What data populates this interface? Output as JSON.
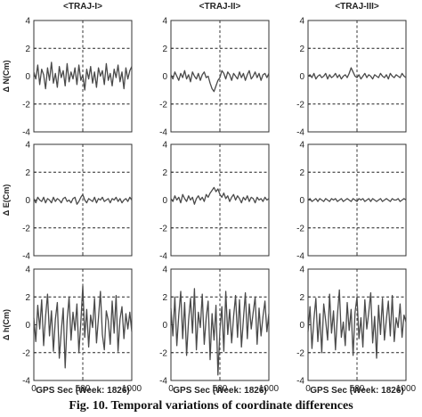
{
  "figure": {
    "caption": "Fig. 10. Temporal variations of coordinate differences"
  },
  "colors": {
    "trace": "#4a4a4a",
    "grid": "#222222",
    "frame": "#333333",
    "text": "#222222"
  },
  "chart_data": {
    "type": "line",
    "rows": [
      "north",
      "east",
      "height"
    ],
    "columns": [
      "traj1",
      "traj2",
      "traj3"
    ],
    "column_titles": [
      "<TRAJ-I>",
      "<TRAJ-II>",
      "<TRAJ-III>"
    ],
    "row_ylabels": [
      "Δ N(Cm)",
      "Δ E(Cm)",
      "Δ h(Cm)"
    ],
    "xlabel": "GPS Sec (Week: 1826)",
    "xlim": [
      0,
      1000
    ],
    "ylim": [
      -4,
      4
    ],
    "x_ticks": [
      0,
      500,
      1000
    ],
    "y_ticks": [
      4,
      2,
      0,
      -2,
      -4
    ],
    "x_tick_labels": [
      "0",
      "500",
      "1000"
    ],
    "y_tick_labels": [
      "4",
      "2",
      "0",
      "-2",
      "-4"
    ],
    "grid": "dashed at x=500 and y=±2",
    "panels": [
      {
        "row": "north",
        "column": "traj1",
        "values": [
          0.3,
          -0.2,
          0.8,
          -0.6,
          0.5,
          0.1,
          -0.9,
          0.6,
          -0.3,
          1.0,
          -0.5,
          0.2,
          -0.8,
          0.7,
          -0.1,
          0.4,
          -0.7,
          0.9,
          -0.4,
          0.3,
          -0.2,
          0.6,
          -0.6,
          0.8,
          -0.3,
          0.1,
          -1.0,
          0.5,
          -0.2,
          0.7,
          -0.5,
          0.3,
          -0.8,
          0.6,
          0.0,
          0.4,
          -0.6,
          0.9,
          -0.3,
          0.2,
          -0.7,
          0.5,
          -0.1,
          0.8,
          -0.4,
          0.3,
          -0.9,
          0.6,
          -0.2,
          0.4,
          0.7
        ]
      },
      {
        "row": "north",
        "column": "traj2",
        "values": [
          0.1,
          -0.2,
          0.3,
          0.0,
          -0.3,
          0.2,
          -0.1,
          0.4,
          -0.2,
          0.1,
          -0.4,
          0.3,
          0.0,
          -0.2,
          0.2,
          -0.3,
          0.1,
          0.3,
          -0.1,
          0.0,
          -0.5,
          -0.9,
          -1.1,
          -0.7,
          -0.3,
          -0.1,
          0.4,
          0.2,
          -0.2,
          0.3,
          0.1,
          -0.3,
          0.2,
          0.0,
          -0.2,
          0.3,
          -0.1,
          0.2,
          -0.3,
          0.1,
          0.4,
          -0.2,
          0.0,
          0.3,
          -0.1,
          0.2,
          -0.3,
          0.1,
          0.2,
          -0.1,
          0.2
        ]
      },
      {
        "row": "north",
        "column": "traj3",
        "values": [
          0.0,
          0.1,
          -0.1,
          0.2,
          -0.2,
          0.0,
          0.1,
          -0.1,
          0.0,
          0.2,
          -0.2,
          0.1,
          -0.1,
          0.0,
          0.2,
          -0.1,
          0.1,
          -0.2,
          0.0,
          0.1,
          -0.1,
          0.2,
          0.6,
          0.3,
          0.0,
          -0.1,
          0.1,
          -0.2,
          0.0,
          0.2,
          -0.1,
          0.1,
          0.0,
          -0.2,
          0.1,
          0.0,
          -0.1,
          0.2,
          0.0,
          -0.1,
          0.1,
          -0.2,
          0.2,
          0.0,
          -0.1,
          0.1,
          0.0,
          -0.1,
          0.2,
          0.0,
          -0.1
        ]
      },
      {
        "row": "east",
        "column": "traj1",
        "values": [
          0.1,
          -0.2,
          0.2,
          0.0,
          -0.1,
          0.2,
          -0.2,
          0.1,
          0.0,
          -0.2,
          0.2,
          -0.1,
          0.1,
          0.0,
          -0.2,
          0.1,
          0.2,
          -0.1,
          0.0,
          -0.2,
          0.1,
          0.2,
          -0.3,
          -0.1,
          0.2,
          0.4,
          0.0,
          -0.2,
          0.1,
          0.0,
          -0.1,
          0.2,
          -0.2,
          0.1,
          0.0,
          0.2,
          -0.1,
          0.0,
          0.1,
          -0.2,
          0.1,
          0.0,
          0.2,
          -0.1,
          0.1,
          -0.2,
          0.0,
          0.1,
          -0.1,
          0.2,
          0.0
        ]
      },
      {
        "row": "east",
        "column": "traj2",
        "values": [
          0.1,
          -0.1,
          0.3,
          0.0,
          0.2,
          -0.2,
          0.4,
          0.1,
          -0.1,
          0.3,
          0.0,
          0.2,
          -0.3,
          0.1,
          0.3,
          0.0,
          0.2,
          -0.1,
          0.4,
          0.2,
          0.5,
          0.7,
          0.9,
          0.6,
          0.8,
          0.4,
          0.2,
          0.5,
          0.1,
          0.3,
          -0.1,
          0.2,
          0.4,
          0.0,
          0.3,
          0.1,
          -0.2,
          0.2,
          0.0,
          0.3,
          -0.1,
          0.2,
          0.1,
          -0.2,
          0.2,
          0.0,
          0.1,
          -0.1,
          0.2,
          0.0,
          0.1
        ]
      },
      {
        "row": "east",
        "column": "traj3",
        "values": [
          0.0,
          0.1,
          -0.1,
          0.0,
          0.1,
          -0.1,
          0.1,
          0.0,
          -0.1,
          0.1,
          0.0,
          -0.1,
          0.1,
          0.0,
          0.1,
          -0.1,
          0.0,
          0.1,
          -0.1,
          0.0,
          0.1,
          0.0,
          -0.1,
          0.1,
          0.0,
          -0.1,
          0.1,
          0.0,
          0.1,
          -0.1,
          0.0,
          0.1,
          -0.1,
          0.1,
          0.0,
          -0.1,
          0.0,
          0.1,
          -0.1,
          0.0,
          0.1,
          0.0,
          -0.1,
          0.1,
          0.0,
          0.0,
          0.1,
          -0.1,
          0.0,
          0.1,
          0.0
        ]
      },
      {
        "row": "height",
        "column": "traj1",
        "values": [
          0.5,
          -1.2,
          1.4,
          -0.3,
          1.8,
          -1.5,
          0.6,
          2.2,
          -0.8,
          1.0,
          -1.9,
          0.4,
          1.6,
          -2.4,
          -0.5,
          1.2,
          -3.1,
          0.3,
          2.0,
          -1.1,
          0.9,
          -0.4,
          1.5,
          -2.0,
          0.2,
          2.8,
          -0.9,
          1.1,
          -1.6,
          0.7,
          -0.2,
          1.9,
          -1.3,
          0.5,
          2.4,
          -0.7,
          -1.8,
          1.0,
          0.3,
          -1.4,
          1.7,
          -0.6,
          2.1,
          -1.9,
          0.4,
          1.3,
          -1.0,
          0.8,
          -0.3,
          0.9,
          -0.5
        ]
      },
      {
        "row": "height",
        "column": "traj2",
        "values": [
          1.2,
          -0.8,
          2.0,
          -1.5,
          0.7,
          2.4,
          -1.0,
          1.6,
          -2.2,
          0.3,
          1.9,
          -0.6,
          2.6,
          -1.8,
          0.9,
          -0.2,
          2.2,
          -1.4,
          0.5,
          1.7,
          -2.5,
          0.8,
          -1.1,
          1.4,
          -3.6,
          -0.4,
          1.3,
          -1.9,
          2.4,
          -0.7,
          1.1,
          -1.3,
          0.6,
          2.1,
          -0.9,
          1.8,
          -1.6,
          0.4,
          2.3,
          -1.0,
          1.5,
          -0.3,
          0.9,
          2.0,
          -1.4,
          1.2,
          -0.8,
          0.6,
          1.7,
          -0.5,
          0.8
        ]
      },
      {
        "row": "height",
        "column": "traj3",
        "values": [
          -0.5,
          1.3,
          -1.7,
          0.4,
          1.9,
          -1.2,
          0.8,
          -2.0,
          1.5,
          0.3,
          -1.1,
          2.2,
          -0.6,
          1.0,
          -1.8,
          0.7,
          2.5,
          -0.9,
          0.2,
          -1.5,
          1.6,
          -0.4,
          1.1,
          -2.2,
          0.9,
          2.0,
          -1.0,
          0.5,
          -1.6,
          1.8,
          -0.3,
          0.9,
          2.3,
          -1.3,
          0.6,
          -2.4,
          1.4,
          -0.7,
          1.9,
          -1.1,
          0.4,
          1.7,
          -0.8,
          2.1,
          -1.2,
          0.5,
          -0.2,
          1.5,
          -0.9,
          0.7,
          0.2
        ]
      }
    ]
  }
}
